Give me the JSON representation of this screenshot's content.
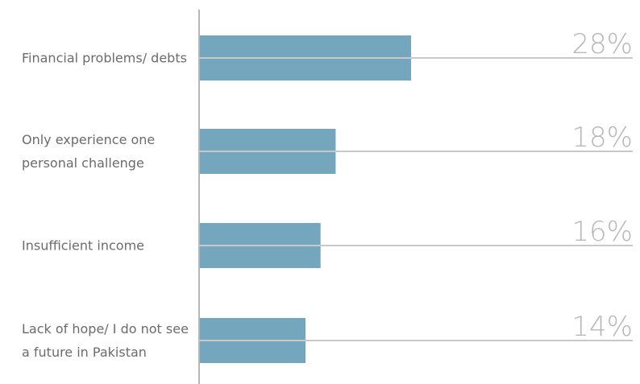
{
  "chart_data": {
    "type": "hbar",
    "categories": [
      "Financial problems/ debts",
      "Only experience one personal challenge",
      "Insufficient income",
      "Lack of hope/ I do not see a future in Pakistan"
    ],
    "values": [
      28,
      18,
      16,
      14
    ],
    "value_labels": [
      "28%",
      "18%",
      "16%",
      "14%"
    ],
    "color": "#74a7be"
  }
}
